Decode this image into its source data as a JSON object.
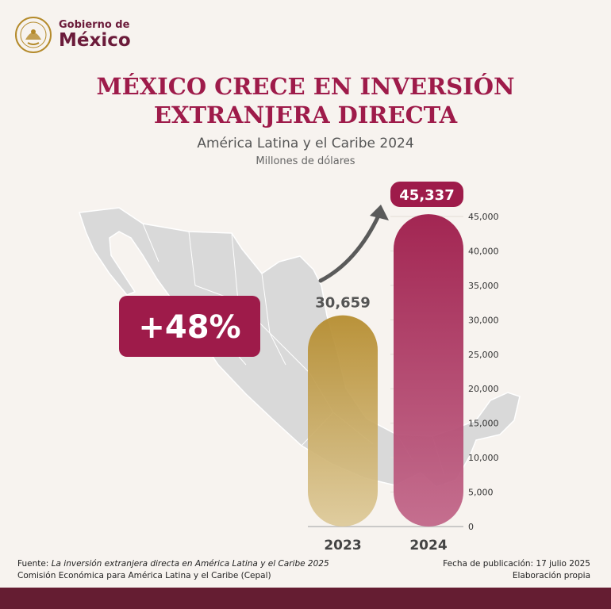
{
  "brand": {
    "small": "Gobierno de",
    "big": "México",
    "seal_text": "ESTADOS UNIDOS MEXICANOS"
  },
  "title_lines": [
    "MÉXICO CRECE EN INVERSIÓN",
    "EXTRANJERA DIRECTA"
  ],
  "subtitle": "América Latina y el Caribe 2024",
  "unit": "Millones de dólares",
  "growth_label": "+48%",
  "chart_data": {
    "type": "bar",
    "title": "MÉXICO CRECE EN INVERSIÓN EXTRANJERA DIRECTA",
    "subtitle": "América Latina y el Caribe 2024",
    "ylabel": "Millones de dólares",
    "categories": [
      "2023",
      "2024"
    ],
    "values": [
      30659,
      45337
    ],
    "value_labels": [
      "30,659",
      "45,337"
    ],
    "ylim": [
      0,
      45000
    ],
    "yticks": [
      0,
      5000,
      10000,
      15000,
      20000,
      25000,
      30000,
      35000,
      40000,
      45000
    ],
    "ytick_labels": [
      "0",
      "5,000",
      "10,000",
      "15,000",
      "20,000",
      "25,000",
      "30,000",
      "35,000",
      "40,000",
      "45,000"
    ],
    "grid": true,
    "legend": "none",
    "annotation": "+48%"
  },
  "colors": {
    "wine": "#9e1b4a",
    "wine_dark": "#651d32",
    "gold": "#b48a2a",
    "gold_light": "#d9c38c",
    "map": "#d9d9d9"
  },
  "footer": {
    "source_prefix": "Fuente: ",
    "source_title": "La inversión extranjera directa en América Latina y el Caribe 2025",
    "source_org": "Comisión Económica para América Latina y el Caribe (Cepal)",
    "pub_date": "Fecha de publicación: 17 julio 2025",
    "elaboration": "Elaboración propia"
  }
}
